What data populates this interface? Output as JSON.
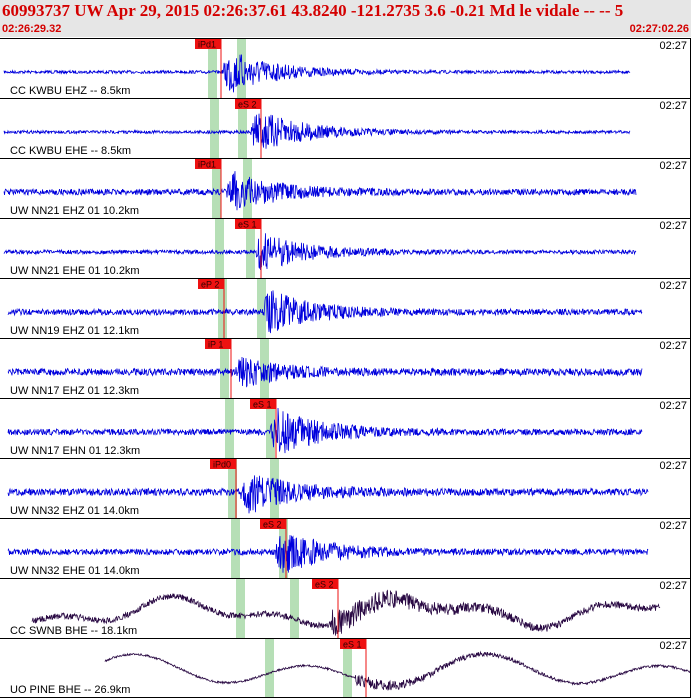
{
  "header": {
    "title": "60993737 UW Apr 29, 2015 02:26:37.61    43.8240 -121.2735  3.6 -0.21 Md le vidale -- --    5",
    "start_time": "02:26:29.32",
    "end_time": "02:27:02.26"
  },
  "colors": {
    "header_bg": "#e6e6e6",
    "header_text": "#d40000",
    "trace_short_period": "#0000dd",
    "trace_broadband": "#2a0a44",
    "pick_box": "#ee1111",
    "window_band": "#b6dfb6"
  },
  "panels": [
    {
      "label": "CC KWBU EHZ -- 8.5km",
      "time": "02:27",
      "pick": "iPd1",
      "color": "blue"
    },
    {
      "label": "CC KWBU EHE -- 8.5km",
      "time": "02:27",
      "pick": "eS 2",
      "color": "blue"
    },
    {
      "label": "UW NN21 EHZ 01 10.2km",
      "time": "02:27",
      "pick": "iPd1",
      "color": "blue"
    },
    {
      "label": "UW NN21 EHE 01 10.2km",
      "time": "02:27",
      "pick": "eS 1",
      "color": "blue"
    },
    {
      "label": "UW NN19 EHZ 01 12.1km",
      "time": "02:27",
      "pick": "eP 2",
      "color": "blue"
    },
    {
      "label": "UW NN17 EHZ 01 12.3km",
      "time": "02:27",
      "pick": "iP 1",
      "color": "blue"
    },
    {
      "label": "UW NN17 EHN 01 12.3km",
      "time": "02:27",
      "pick": "eS 1",
      "color": "blue"
    },
    {
      "label": "UW NN32 EHZ 01 14.0km",
      "time": "02:27",
      "pick": "iPd0",
      "color": "blue"
    },
    {
      "label": "UW NN32 EHE 01 14.0km",
      "time": "02:27",
      "pick": "eS 2",
      "color": "blue"
    },
    {
      "label": "CC SWNB BHE -- 18.1km",
      "time": "02:27",
      "pick": "eS 2",
      "color": "dark"
    },
    {
      "label": "UO PINE BHE -- 26.9km",
      "time": "02:27",
      "pick": "eS 1",
      "color": "dark"
    }
  ]
}
